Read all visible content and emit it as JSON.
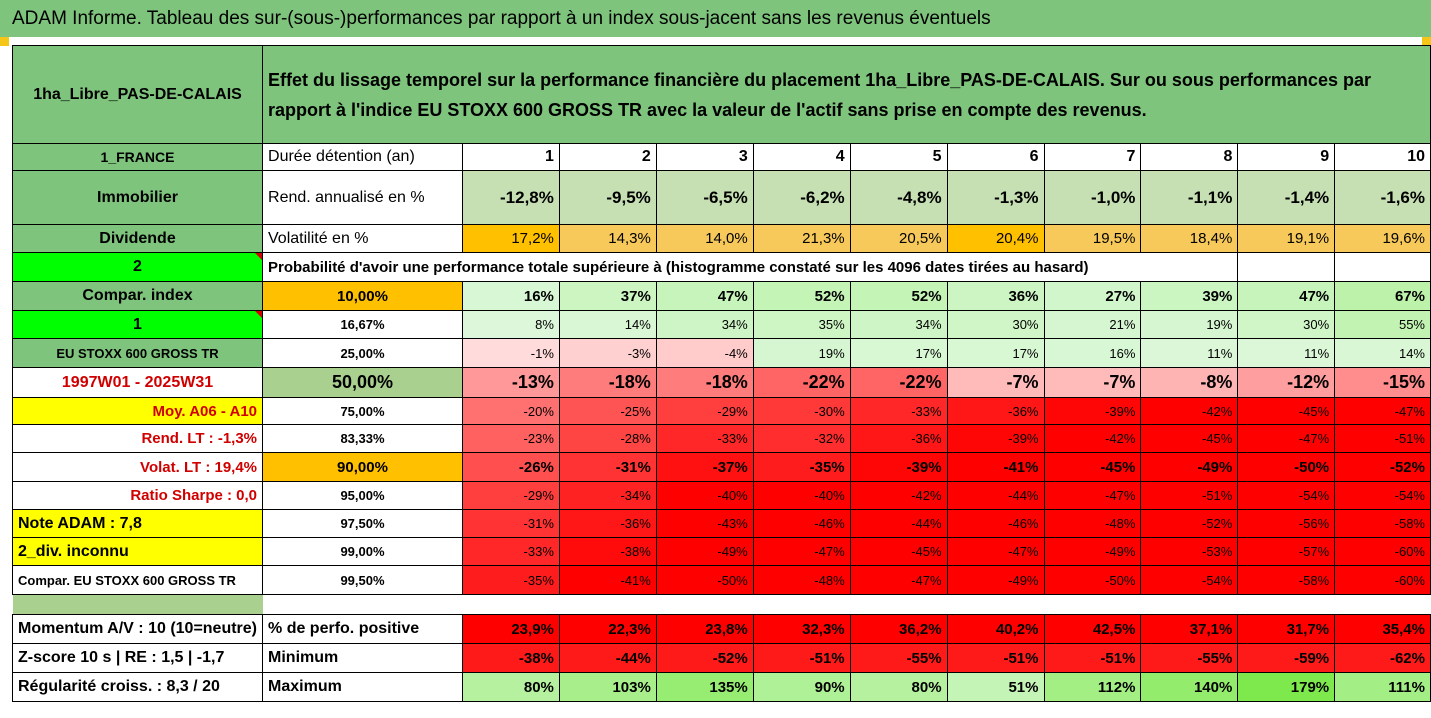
{
  "title": "ADAM Informe. Tableau des sur-(sous-)performances par rapport à un index sous-jacent sans les revenus éventuels",
  "fund_name": "1ha_Libre_PAS-DE-CALAIS",
  "description": "Effet du lissage temporel sur la performance financière du placement 1ha_Libre_PAS-DE-CALAIS. Sur ou sous performances par rapport à l'indice EU STOXX 600 GROSS TR avec la valeur de l'actif sans prise en compte des revenus.",
  "left": {
    "country": "1_FRANCE",
    "category": "Immobilier",
    "dividend": "Dividende",
    "num2": "2",
    "compar": "Compar. index",
    "num1": "1",
    "index_name": "EU STOXX 600 GROSS TR",
    "period": "1997W01 - 2025W31",
    "moy": "Moy. A06 - A10",
    "rend_lt": "Rend. LT :   -1,3%",
    "volat_lt": "Volat. LT :   19,4%",
    "sharpe": "Ratio Sharpe :   0,0",
    "note": "Note ADAM : 7,8",
    "div": "2_div. inconnu",
    "compar_full": "Compar. EU STOXX 600 GROSS TR",
    "momentum": "Momentum A/V : 10 (10=neutre)",
    "zscore": "Z-score 10 s  | RE : 1,5  | -1,7",
    "regularite": "Régularité croiss. : 8,3 / 20"
  },
  "row_labels": {
    "duree": "Durée détention (an)",
    "rend": "Rend. annualisé en %",
    "volat": "Volatilité en %",
    "proba": "Probabilité d'avoir une performance totale supérieure à (histogramme constaté sur les 4096 dates tirées au hasard)",
    "perf_pos": "% de perfo. positive",
    "minimum": "Minimum",
    "maximum": "Maximum"
  },
  "years": [
    "1",
    "2",
    "3",
    "4",
    "5",
    "6",
    "7",
    "8",
    "9",
    "10"
  ],
  "rend": [
    "-12,8%",
    "-9,5%",
    "-6,5%",
    "-6,2%",
    "-4,8%",
    "-1,3%",
    "-1,0%",
    "-1,1%",
    "-1,4%",
    "-1,6%"
  ],
  "volat": [
    "17,2%",
    "14,3%",
    "14,0%",
    "21,3%",
    "20,5%",
    "20,4%",
    "19,5%",
    "18,4%",
    "19,1%",
    "19,6%"
  ],
  "percentiles": [
    {
      "p": "10,00%",
      "v": [
        "16%",
        "37%",
        "47%",
        "52%",
        "52%",
        "36%",
        "27%",
        "39%",
        "47%",
        "67%"
      ]
    },
    {
      "p": "16,67%",
      "v": [
        "8%",
        "14%",
        "34%",
        "35%",
        "34%",
        "30%",
        "21%",
        "19%",
        "30%",
        "55%"
      ]
    },
    {
      "p": "25,00%",
      "v": [
        "-1%",
        "-3%",
        "-4%",
        "19%",
        "17%",
        "17%",
        "16%",
        "11%",
        "11%",
        "14%"
      ]
    },
    {
      "p": "50,00%",
      "v": [
        "-13%",
        "-18%",
        "-18%",
        "-22%",
        "-22%",
        "-7%",
        "-7%",
        "-8%",
        "-12%",
        "-15%"
      ]
    },
    {
      "p": "75,00%",
      "v": [
        "-20%",
        "-25%",
        "-29%",
        "-30%",
        "-33%",
        "-36%",
        "-39%",
        "-42%",
        "-45%",
        "-47%"
      ]
    },
    {
      "p": "83,33%",
      "v": [
        "-23%",
        "-28%",
        "-33%",
        "-32%",
        "-36%",
        "-39%",
        "-42%",
        "-45%",
        "-47%",
        "-51%"
      ]
    },
    {
      "p": "90,00%",
      "v": [
        "-26%",
        "-31%",
        "-37%",
        "-35%",
        "-39%",
        "-41%",
        "-45%",
        "-49%",
        "-50%",
        "-52%"
      ]
    },
    {
      "p": "95,00%",
      "v": [
        "-29%",
        "-34%",
        "-40%",
        "-40%",
        "-42%",
        "-44%",
        "-47%",
        "-51%",
        "-54%",
        "-54%"
      ]
    },
    {
      "p": "97,50%",
      "v": [
        "-31%",
        "-36%",
        "-43%",
        "-46%",
        "-44%",
        "-46%",
        "-48%",
        "-52%",
        "-56%",
        "-58%"
      ]
    },
    {
      "p": "99,00%",
      "v": [
        "-33%",
        "-38%",
        "-49%",
        "-47%",
        "-45%",
        "-47%",
        "-49%",
        "-53%",
        "-57%",
        "-60%"
      ]
    },
    {
      "p": "99,50%",
      "v": [
        "-35%",
        "-41%",
        "-50%",
        "-48%",
        "-47%",
        "-49%",
        "-50%",
        "-54%",
        "-58%",
        "-60%"
      ]
    }
  ],
  "perf_pos": [
    "23,9%",
    "22,3%",
    "23,8%",
    "32,3%",
    "36,2%",
    "40,2%",
    "42,5%",
    "37,1%",
    "31,7%",
    "35,4%"
  ],
  "minimum": [
    "-38%",
    "-44%",
    "-52%",
    "-51%",
    "-55%",
    "-51%",
    "-51%",
    "-55%",
    "-59%",
    "-62%"
  ],
  "maximum": [
    "80%",
    "103%",
    "135%",
    "90%",
    "80%",
    "51%",
    "112%",
    "140%",
    "179%",
    "111%"
  ],
  "colors": {
    "green": "#7ec47c",
    "yellow": "#ffff00",
    "orange": "#ffc000",
    "lime": "#00ff00",
    "red": "#ff0000"
  }
}
